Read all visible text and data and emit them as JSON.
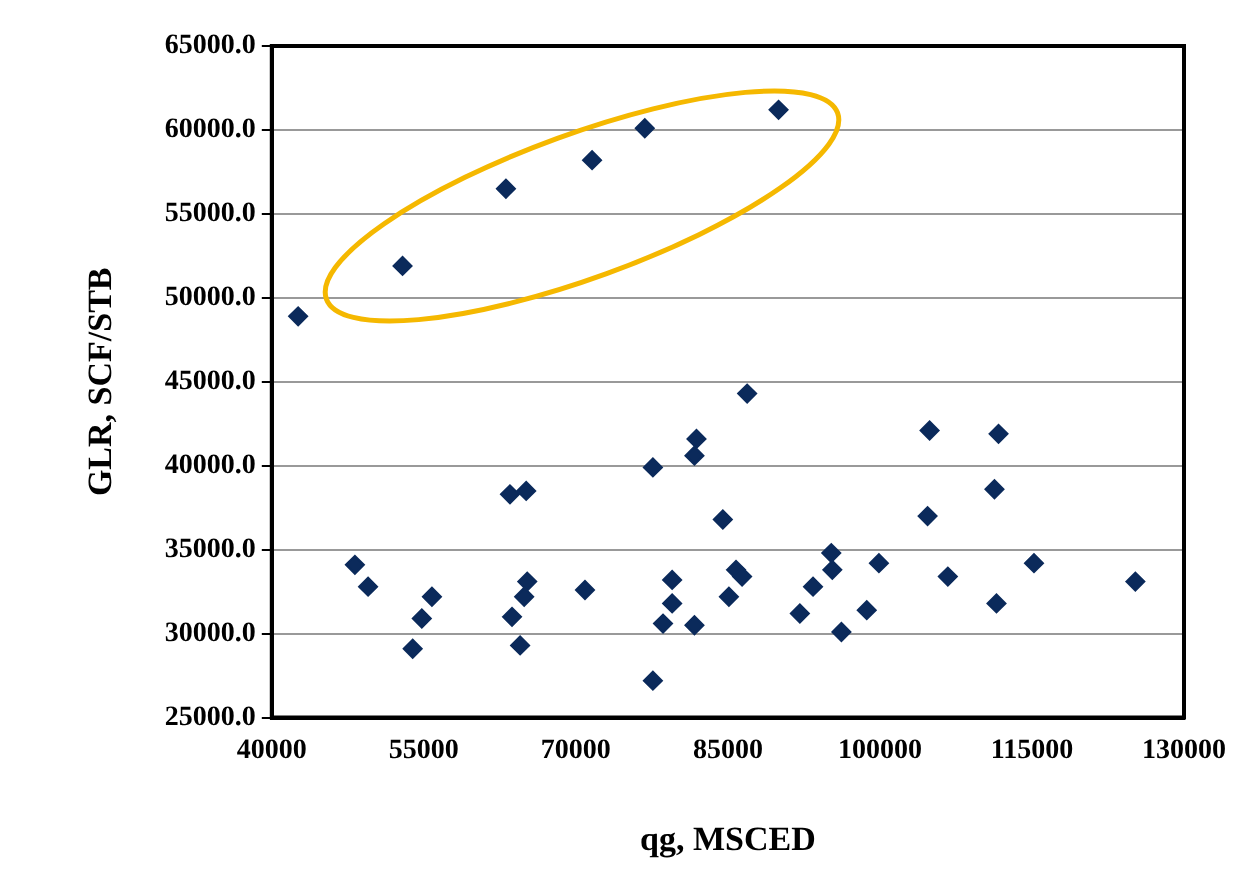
{
  "chart_data": {
    "type": "scatter",
    "xlabel": "qg, MSCED",
    "ylabel": "GLR, SCF/STB",
    "x": [
      42600,
      52900,
      63100,
      71600,
      76800,
      90000,
      48200,
      49500,
      53900,
      54400,
      54800,
      55800,
      63500,
      65100,
      65200,
      64900,
      63700,
      64500,
      70900,
      77600,
      81900,
      81700,
      84500,
      85800,
      86400,
      85100,
      79500,
      79500,
      78600,
      81700,
      77600,
      86900,
      104900,
      111700,
      111300,
      104700,
      95200,
      95300,
      99900,
      93400,
      92100,
      98700,
      96200,
      106700,
      115200,
      111500,
      125200
    ],
    "series": [
      {
        "color": "#0b2a5b",
        "values": [
          48900,
          51900,
          56500,
          58200,
          60100,
          61200,
          34100,
          32800,
          29100,
          null,
          30900,
          32200,
          38300,
          38500,
          33100,
          32200,
          31000,
          29300,
          32600,
          39900,
          41600,
          40600,
          36800,
          33800,
          33400,
          32200,
          33200,
          31800,
          30600,
          30500,
          27200,
          44300,
          42100,
          41900,
          38600,
          37000,
          34800,
          33800,
          34200,
          32800,
          31200,
          31400,
          30100,
          33400,
          34200,
          31800,
          33100
        ]
      }
    ],
    "xlim": [
      40000,
      130000
    ],
    "xticks": [
      40000,
      55000,
      70000,
      85000,
      100000,
      115000,
      130000
    ],
    "ylim": [
      25000,
      65000
    ],
    "yticks": [
      {
        "value": 25000,
        "label": "25000.0"
      },
      {
        "value": 30000,
        "label": "30000.0"
      },
      {
        "value": 35000,
        "label": "35000.0"
      },
      {
        "value": 40000,
        "label": "40000.0"
      },
      {
        "value": 45000,
        "label": "45000.0"
      },
      {
        "value": 50000,
        "label": "50000.0"
      },
      {
        "value": 55000,
        "label": "55000.0"
      },
      {
        "value": 60000,
        "label": "60000.0"
      },
      {
        "value": 65000,
        "label": "65000.0"
      }
    ],
    "grid": "y",
    "marker": "diamond",
    "legend": false
  }
}
